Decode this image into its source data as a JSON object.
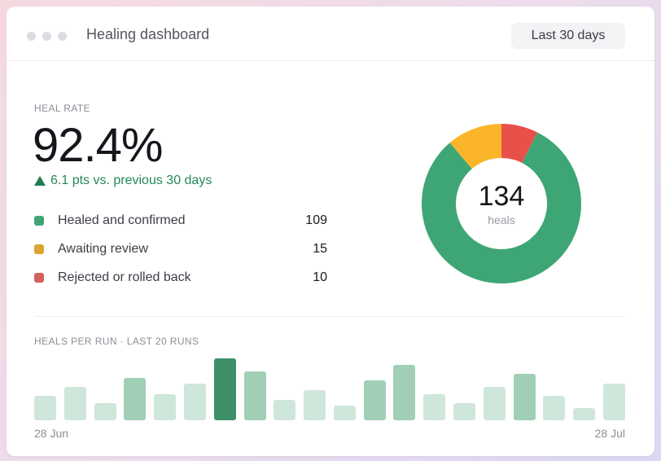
{
  "window": {
    "title": "Healing dashboard",
    "range_button": "Last 30 days"
  },
  "kpi": {
    "label": "HEAL RATE",
    "value": "92.4%",
    "delta": "6.1 pts vs. previous 30 days",
    "delta_color": "#23875a"
  },
  "legend": [
    {
      "label": "Healed and confirmed",
      "count": "109",
      "color": "#3ea675"
    },
    {
      "label": "Awaiting review",
      "count": "15",
      "color": "#d9a530"
    },
    {
      "label": "Rejected or rolled back",
      "count": "10",
      "color": "#d2625d"
    }
  ],
  "donut": {
    "total": "134",
    "unit": "heals",
    "segments": [
      {
        "value": 109,
        "color": "#3ea675"
      },
      {
        "value": 15,
        "color": "#fbb52a"
      },
      {
        "value": 10,
        "color": "#e8504a"
      }
    ]
  },
  "runs": {
    "label": "HEALS PER RUN · LAST 20 RUNS",
    "start_label": "28 Jun",
    "end_label": "28 Jul"
  },
  "chart_data": {
    "type": "bar",
    "title": "HEALS PER RUN · LAST 20 RUNS",
    "categories": [
      "1",
      "2",
      "3",
      "4",
      "5",
      "6",
      "7",
      "8",
      "9",
      "10",
      "11",
      "12",
      "13",
      "14",
      "15",
      "16",
      "17",
      "18",
      "19",
      "20"
    ],
    "values": [
      3.9,
      5.4,
      2.8,
      6.9,
      4.2,
      5.9,
      10.0,
      7.9,
      3.3,
      4.9,
      2.4,
      6.5,
      8.9,
      4.2,
      2.8,
      5.4,
      7.5,
      3.9,
      2.0,
      5.9
    ],
    "xlabel": "",
    "ylabel": "",
    "x_start_label": "28 Jun",
    "x_end_label": "28 Jul",
    "ylim": [
      0,
      10
    ],
    "grid": false,
    "colors": {
      "light": "#cfe6da",
      "medium": "#a0cfb6",
      "dark": "#3f8f68"
    }
  }
}
